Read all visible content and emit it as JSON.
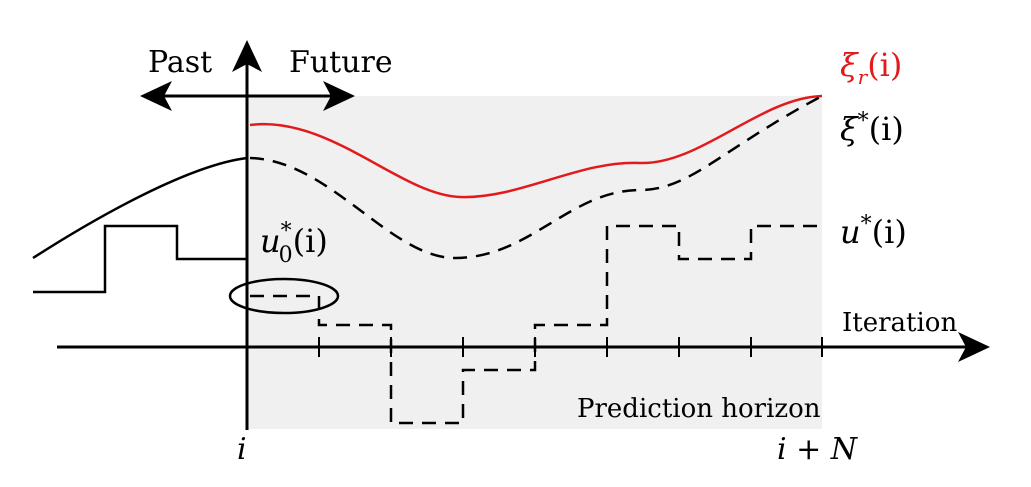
{
  "labels": {
    "past": "Past",
    "future": "Future",
    "iteration": "Iteration",
    "prediction_horizon": "Prediction horizon",
    "x_start": "i",
    "x_end": "i + N"
  },
  "curves": {
    "reference": {
      "symbol": "ξ",
      "sub": "r",
      "arg": "(i)",
      "color": "#e31a1c"
    },
    "optimal_state": {
      "symbol": "ξ",
      "sup": "*",
      "arg": "(i)"
    },
    "optimal_input": {
      "symbol": "u",
      "sup": "*",
      "arg": "(i)"
    },
    "first_input": {
      "symbol": "u",
      "sub": "0",
      "sup": "*",
      "arg": "(i)"
    }
  },
  "colors": {
    "reference": "#e31a1c",
    "horizon_shade": "#f0f0f0",
    "axis": "#000000"
  }
}
